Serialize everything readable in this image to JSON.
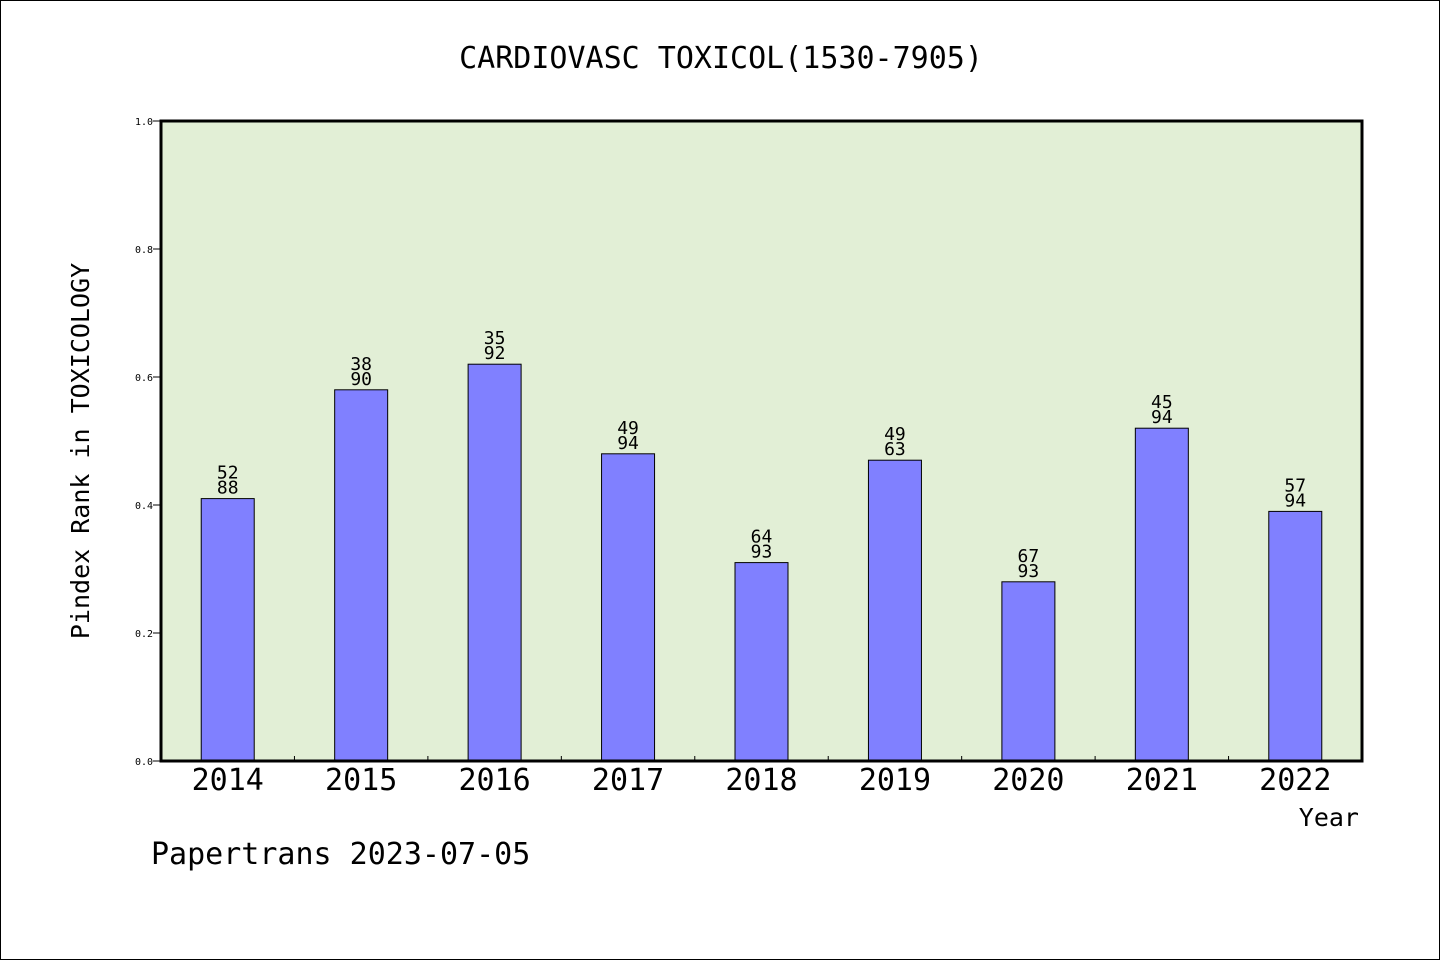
{
  "chart_data": {
    "type": "bar",
    "title": "CARDIOVASC TOXICOL(1530-7905)",
    "xlabel": "Year",
    "ylabel": "Pindex Rank in TOXICOLOGY",
    "ylim": [
      0.0,
      1.0
    ],
    "yticks": [
      "0.0",
      "0.2",
      "0.4",
      "0.6",
      "0.8",
      "1.0"
    ],
    "ytick_values": [
      0.0,
      0.2,
      0.4,
      0.6,
      0.8,
      1.0
    ],
    "categories": [
      "2014",
      "2015",
      "2016",
      "2017",
      "2018",
      "2019",
      "2020",
      "2021",
      "2022"
    ],
    "values": [
      0.41,
      0.58,
      0.62,
      0.48,
      0.31,
      0.47,
      0.28,
      0.52,
      0.39
    ],
    "data_labels_top": [
      "52",
      "38",
      "35",
      "49",
      "64",
      "49",
      "67",
      "45",
      "57"
    ],
    "data_labels_bottom": [
      "88",
      "90",
      "92",
      "94",
      "93",
      "63",
      "93",
      "94",
      "94"
    ],
    "grid": false,
    "legend": "none",
    "colors": {
      "plot_background": "#e2efd6",
      "bar_fill": "#8080ff",
      "bar_stroke": "#000000"
    }
  },
  "footer": {
    "text": "Papertrans 2023-07-05"
  }
}
